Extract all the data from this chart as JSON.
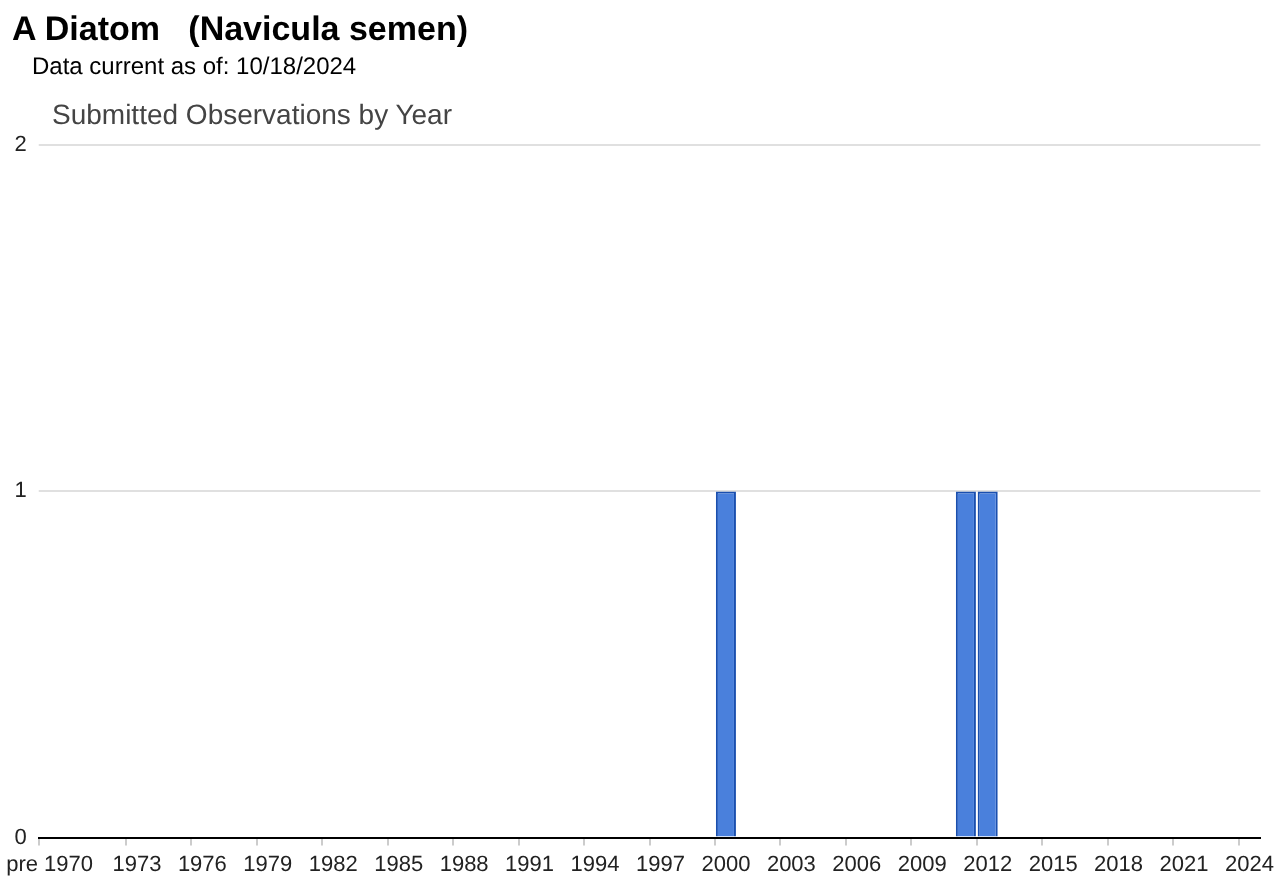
{
  "chart_data": {
    "type": "bar",
    "title": "A Diatom   (Navicula semen)",
    "subtitle": "Data current as of: 10/18/2024",
    "annotations": [
      "Submitted Observations by Year"
    ],
    "categories": [
      "pre 1970",
      null,
      null,
      null,
      "1973",
      null,
      null,
      "1976",
      null,
      null,
      "1979",
      null,
      null,
      "1982",
      null,
      null,
      "1985",
      null,
      null,
      "1988",
      null,
      null,
      "1991",
      null,
      null,
      "1994",
      null,
      null,
      "1997",
      null,
      null,
      "2000",
      null,
      null,
      "2003",
      null,
      null,
      "2006",
      null,
      null,
      "2009",
      null,
      null,
      "2012",
      null,
      null,
      "2015",
      null,
      null,
      "2018",
      null,
      null,
      "2021",
      null,
      null,
      "2024"
    ],
    "values": [
      0,
      0,
      0,
      0,
      0,
      0,
      0,
      0,
      0,
      0,
      0,
      0,
      0,
      0,
      0,
      0,
      0,
      0,
      0,
      0,
      0,
      0,
      0,
      0,
      0,
      0,
      0,
      0,
      0,
      0,
      0,
      1,
      0,
      0,
      0,
      0,
      0,
      0,
      0,
      0,
      0,
      0,
      1,
      1,
      0,
      0,
      0,
      0,
      0,
      0,
      0,
      0,
      0,
      0,
      0,
      0
    ],
    "color": "#4a80dc",
    "ylim": [
      0,
      2
    ],
    "yticks": [
      0,
      1,
      2
    ],
    "grid": "y",
    "legend": false
  }
}
